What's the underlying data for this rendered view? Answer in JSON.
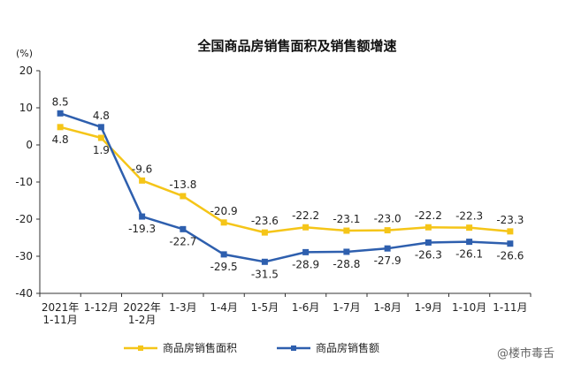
{
  "chart_data": {
    "type": "line",
    "title": "全国商品房销售面积及销售额增速",
    "unit": "(%)",
    "ylim": [
      -40,
      20
    ],
    "yticks": [
      20,
      10,
      0,
      -10,
      -20,
      -30,
      -40
    ],
    "grid": false,
    "legend_position": "bottom",
    "categories": [
      [
        "2021年",
        "1-11月"
      ],
      [
        "1-12月"
      ],
      [
        "2022年",
        "1-2月"
      ],
      [
        "1-3月"
      ],
      [
        "1-4月"
      ],
      [
        "1-5月"
      ],
      [
        "1-6月"
      ],
      [
        "1-7月"
      ],
      [
        "1-8月"
      ],
      [
        "1-9月"
      ],
      [
        "1-10月"
      ],
      [
        "1-11月"
      ]
    ],
    "series": [
      {
        "name": "商品房销售面积",
        "color": "#f5c518",
        "values": [
          4.8,
          1.9,
          -9.6,
          -13.8,
          -20.9,
          -23.6,
          -22.2,
          -23.1,
          -23.0,
          -22.2,
          -22.3,
          -23.3
        ],
        "labels": [
          "4.8",
          "1.9",
          "-9.6",
          "-13.8",
          "-20.9",
          "-23.6",
          "-22.2",
          "-23.1",
          "-23.0",
          "-22.2",
          "-22.3",
          "-23.3"
        ]
      },
      {
        "name": "商品房销售额",
        "color": "#2e5fae",
        "values": [
          8.5,
          4.8,
          -19.3,
          -22.7,
          -29.5,
          -31.5,
          -28.9,
          -28.8,
          -27.9,
          -26.3,
          -26.1,
          -26.6
        ],
        "labels": [
          "8.5",
          "4.8",
          "-19.3",
          "-22.7",
          "-29.5",
          "-31.5",
          "-28.9",
          "-28.8",
          "-27.9",
          "-26.3",
          "-26.1",
          "-26.6"
        ]
      }
    ]
  },
  "watermark": "@楼市毒舌"
}
